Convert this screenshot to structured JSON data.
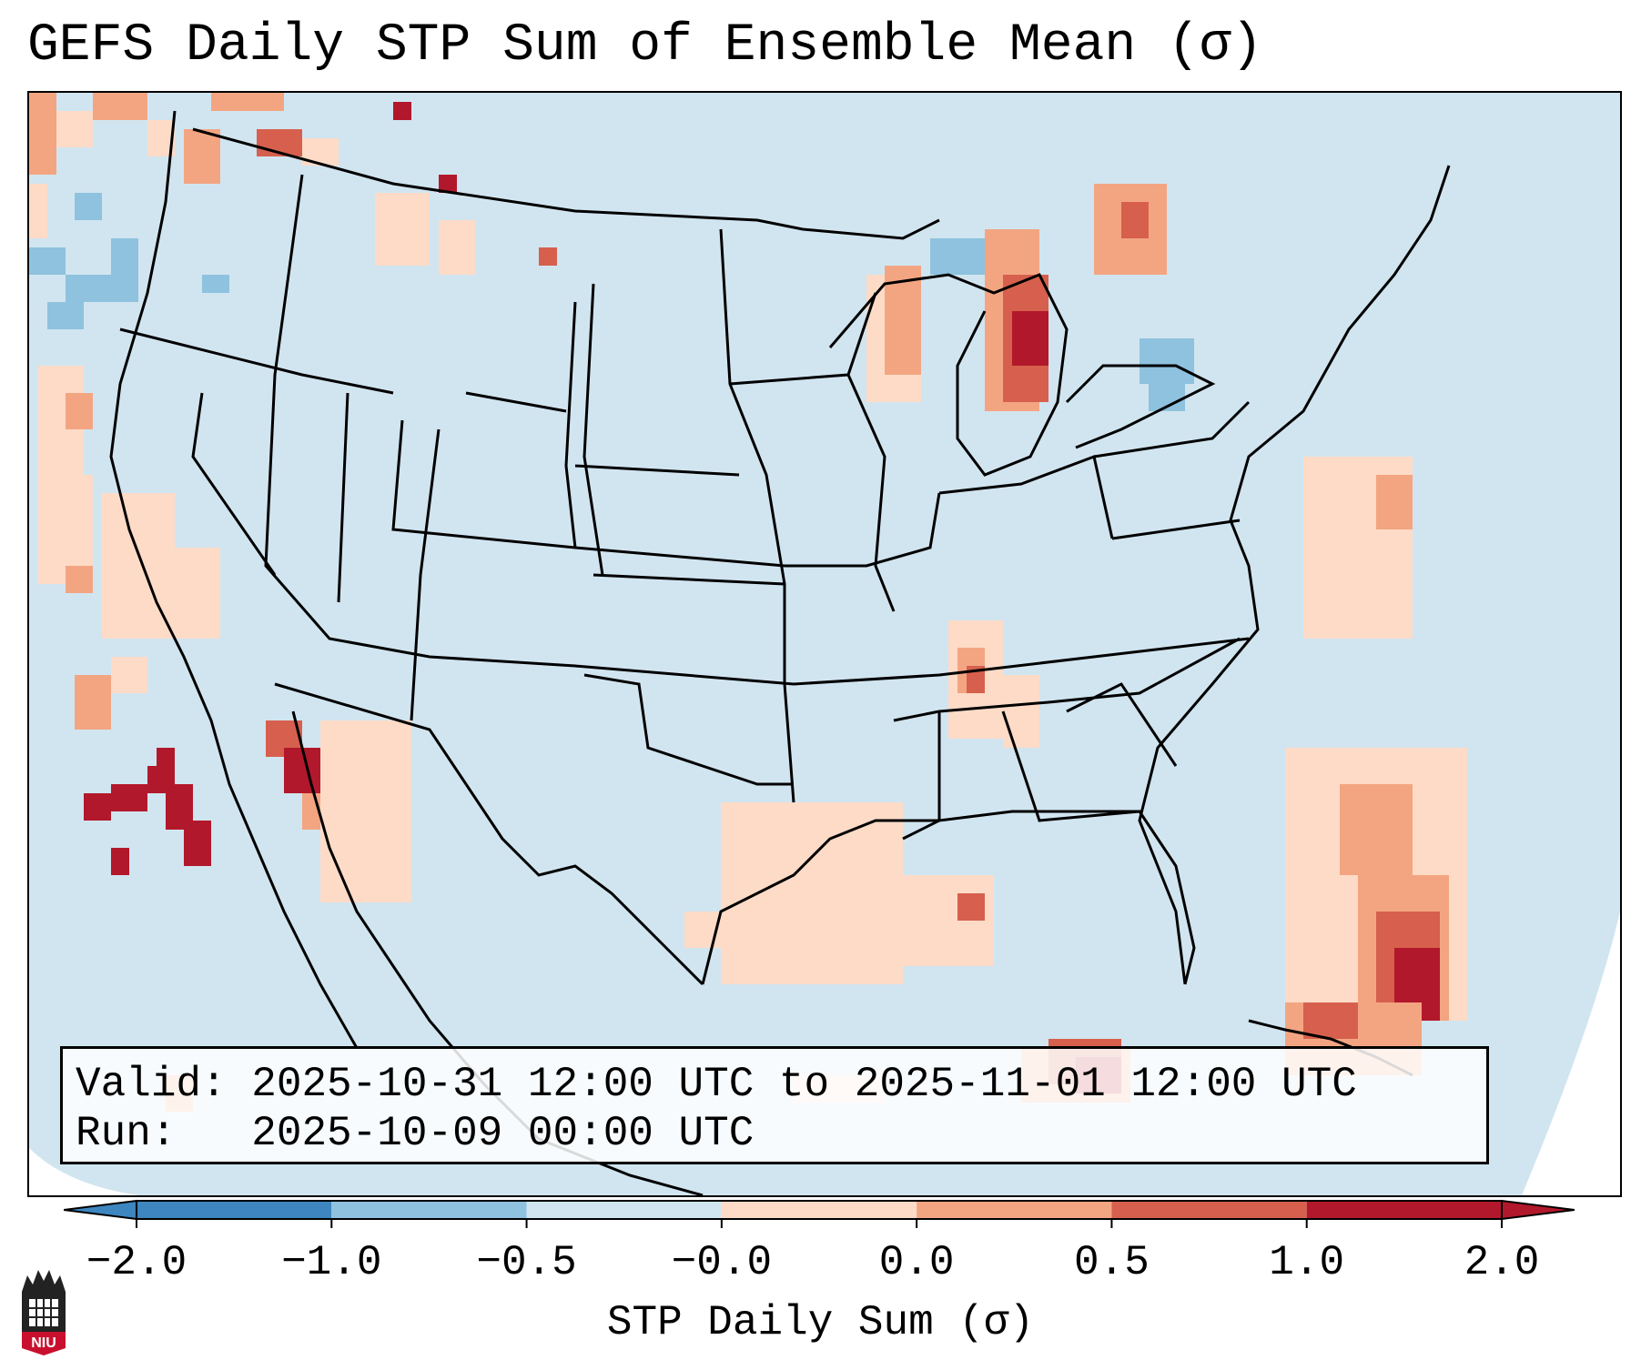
{
  "title": "GEFS Daily STP Sum of Ensemble Mean (σ)",
  "info_box": {
    "valid": "Valid: 2025-10-31 12:00 UTC to 2025-11-01 12:00 UTC",
    "run": "Run:   2025-10-09 00:00 UTC"
  },
  "colorbar": {
    "label": "STP Daily Sum (σ)",
    "ticks": [
      "−2.0",
      "−1.0",
      "−0.5",
      "−0.0",
      "0.0",
      "0.5",
      "1.0",
      "2.0"
    ],
    "colors": [
      "#3d86bf",
      "#8ec2de",
      "#d1e5f0",
      "#fddbc7",
      "#f3a582",
      "#d6604d",
      "#b2182b"
    ],
    "extend": "both"
  },
  "map": {
    "background": "#d1e5f0",
    "outside_color": "#ffffff",
    "region": "Contiguous United States"
  },
  "logo_text": "NIU",
  "colors": {
    "weak_positive": "#fddbc7",
    "moderate_positive": "#f3a582",
    "strong_positive": "#d6604d",
    "very_strong_positive": "#b2182b",
    "weak_negative": "#8ec2de",
    "moderate_negative": "#6aa8d2"
  }
}
